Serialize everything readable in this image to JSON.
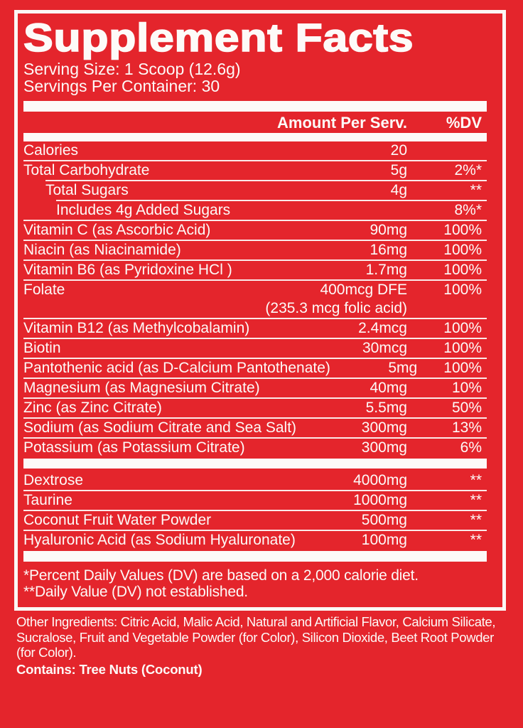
{
  "colors": {
    "background": "#e4252c",
    "foreground": "#fdfaf8"
  },
  "title": "Supplement Facts",
  "serving": {
    "size": "Serving Size: 1 Scoop (12.6g)",
    "per_container": "Servings Per Container: 30"
  },
  "table": {
    "header": {
      "amount": "Amount Per Serv.",
      "dv": "%DV"
    },
    "rows": [
      {
        "name": "Calories",
        "amount": "20",
        "dv": "",
        "indent": 0
      },
      {
        "name": "Total Carbohydrate",
        "amount": "5g",
        "dv": "2%*",
        "indent": 0
      },
      {
        "name": "Total Sugars",
        "amount": "4g",
        "dv": "**",
        "indent": 1
      },
      {
        "name": "Includes 4g Added Sugars",
        "amount": "",
        "dv": "8%*",
        "indent": 2
      },
      {
        "name": "Vitamin C (as Ascorbic Acid)",
        "amount": "90mg",
        "dv": "100%",
        "indent": 0
      },
      {
        "name": "Niacin (as Niacinamide)",
        "amount": "16mg",
        "dv": "100%",
        "indent": 0
      },
      {
        "name": "Vitamin B6 (as Pyridoxine HCl )",
        "amount": "1.7mg",
        "dv": "100%",
        "indent": 0
      },
      {
        "name": "Folate",
        "amount": "400mcg DFE",
        "dv": "100%",
        "indent": 0,
        "subnote": "(235.3 mcg folic acid)"
      },
      {
        "name": "Vitamin B12 (as Methylcobalamin)",
        "amount": "2.4mcg",
        "dv": "100%",
        "indent": 0
      },
      {
        "name": "Biotin",
        "amount": "30mcg",
        "dv": "100%",
        "indent": 0
      },
      {
        "name": "Pantothenic acid (as D-Calcium Pantothenate)",
        "amount": "5mg",
        "dv": "100%",
        "indent": 0
      },
      {
        "name": "Magnesium (as Magnesium Citrate)",
        "amount": "40mg",
        "dv": "10%",
        "indent": 0
      },
      {
        "name": "Zinc (as Zinc Citrate)",
        "amount": "5.5mg",
        "dv": "50%",
        "indent": 0
      },
      {
        "name": "Sodium (as Sodium Citrate and Sea Salt)",
        "amount": "300mg",
        "dv": "13%",
        "indent": 0
      },
      {
        "name": "Potassium (as Potassium Citrate)",
        "amount": "300mg",
        "dv": "6%",
        "indent": 0
      }
    ],
    "rows2": [
      {
        "name": "Dextrose",
        "amount": "4000mg",
        "dv": "**",
        "indent": 0
      },
      {
        "name": "Taurine",
        "amount": "1000mg",
        "dv": "**",
        "indent": 0
      },
      {
        "name": "Coconut Fruit Water Powder",
        "amount": "500mg",
        "dv": "**",
        "indent": 0
      },
      {
        "name": "Hyaluronic Acid (as Sodium Hyaluronate)",
        "amount": "100mg",
        "dv": "**",
        "indent": 0
      }
    ]
  },
  "footnotes": [
    "*Percent Daily Values (DV) are based on a 2,000 calorie diet.",
    "**Daily Value (DV) not established."
  ],
  "other_ingredients": "Other Ingredients: Citric Acid, Malic Acid, Natural and Artificial Flavor, Calcium Silicate, Sucralose, Fruit and Vegetable Powder (for Color), Silicon Dioxide, Beet Root Powder (for Color).",
  "contains": "Contains: Tree Nuts (Coconut)"
}
